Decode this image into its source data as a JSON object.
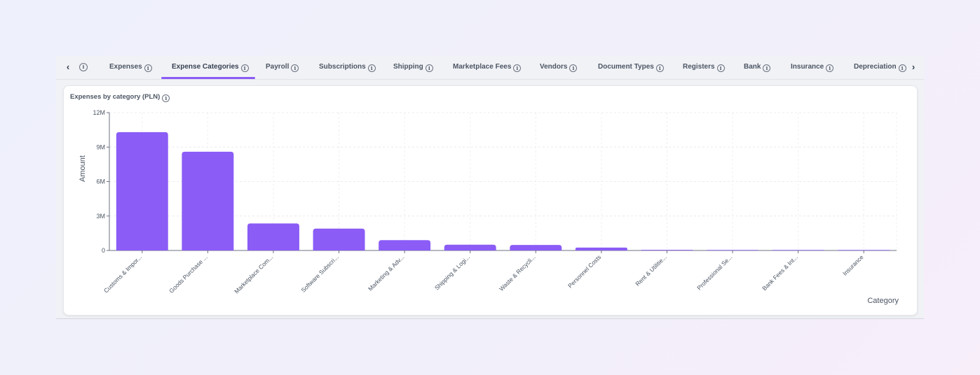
{
  "tabs": {
    "prev_icon": "chevron-left-icon",
    "next_icon": "chevron-right-icon",
    "items": [
      {
        "label": "Expenses"
      },
      {
        "label": "Expense Categories"
      },
      {
        "label": "Payroll"
      },
      {
        "label": "Subscriptions"
      },
      {
        "label": "Shipping"
      },
      {
        "label": "Marketplace Fees"
      },
      {
        "label": "Vendors"
      },
      {
        "label": "Document Types"
      },
      {
        "label": "Registers"
      },
      {
        "label": "Bank"
      },
      {
        "label": "Insurance"
      },
      {
        "label": "Depreciation"
      }
    ],
    "active_index": 1
  },
  "card": {
    "title": "Expenses by category (PLN)",
    "info_icon": "info-icon"
  },
  "chart_data": {
    "type": "bar",
    "title": "Expenses by category (PLN)",
    "xlabel": "Category",
    "ylabel": "Amount",
    "ylim": [
      0,
      12000000
    ],
    "yticks": [
      {
        "value": 0,
        "label": "0"
      },
      {
        "value": 3000000,
        "label": "3M"
      },
      {
        "value": 6000000,
        "label": "6M"
      },
      {
        "value": 9000000,
        "label": "9M"
      },
      {
        "value": 12000000,
        "label": "12M"
      }
    ],
    "grid": true,
    "bar_color": "#8b5cf6",
    "categories": [
      "Customs & Impor...",
      "Goods Purchase ...",
      "Marketplace Com...",
      "Software Subscri...",
      "Marketing & Adv...",
      "Shipping & Logi...",
      "Waste & Recycli...",
      "Personnel Costs",
      "Rent & Utilitie...",
      "Professional Se...",
      "Bank Fees & Int...",
      "Insurance"
    ],
    "values": [
      10300000,
      8600000,
      2350000,
      1900000,
      900000,
      500000,
      480000,
      250000,
      50000,
      20000,
      15000,
      10000
    ]
  }
}
